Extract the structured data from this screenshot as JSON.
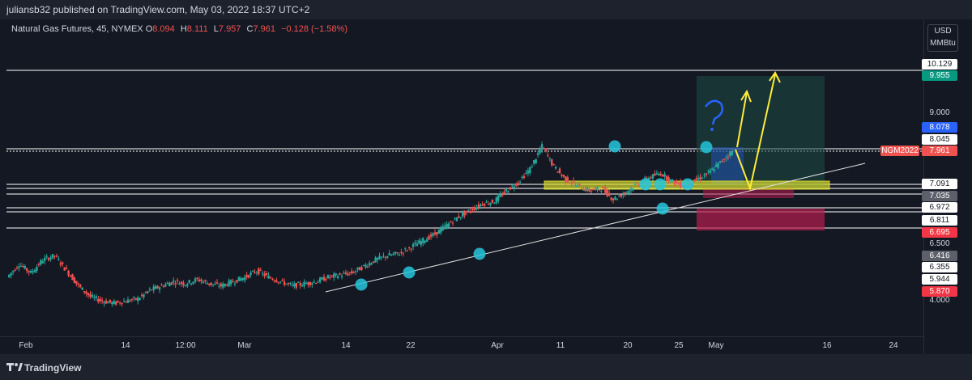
{
  "header": {
    "publisher": "juliansb32 published on TradingView.com, May 03, 2022 18:37 UTC+2"
  },
  "legend": {
    "symbol": "Natural Gas Futures, 45, NYMEX",
    "open_label": "O",
    "open": "8.094",
    "high_label": "H",
    "high": "8.111",
    "low_label": "L",
    "low": "7.957",
    "close_label": "C",
    "close": "7.961",
    "change": "−0.128 (−1.58%)"
  },
  "currency": {
    "line1": "USD",
    "line2": "MMBtu"
  },
  "symbol_tag": "NGM2022",
  "footer": {
    "brand": "TradingView"
  },
  "colors": {
    "up": "#26a69a",
    "down": "#ef5350",
    "green_badge": "#089981",
    "blue_badge": "#2962ff",
    "red_badge": "#ef5350",
    "pink_badge": "#f23645",
    "grey_badge": "#5d606b",
    "zone_yellow": "#d4d92e",
    "annotation_yellow": "#ffeb3b",
    "annotation_blue": "#2962ff",
    "touch_point": "#26c6da"
  },
  "chart_data": {
    "type": "candlestick",
    "y_scale": "log",
    "x_tick_labels": [
      "Feb",
      "14",
      "12:00",
      "Mar",
      "14",
      "22",
      "Apr",
      "11",
      "20",
      "25",
      "May",
      "16",
      "24"
    ],
    "price_ticks": [
      "10.129",
      "9.955",
      "9.000",
      "8.078",
      "8.045",
      "7.961",
      "7.091",
      "7.035",
      "6.972",
      "6.811",
      "6.695",
      "6.500",
      "6.416",
      "6.355",
      "5.944",
      "5.870",
      "4.000"
    ],
    "price_labels": [
      {
        "value": "10.129",
        "style": "plain"
      },
      {
        "value": "9.955",
        "style": "green"
      },
      {
        "value": "9.000",
        "style": "text"
      },
      {
        "value": "8.078",
        "style": "blue"
      },
      {
        "value": "8.045",
        "style": "plain"
      },
      {
        "value": "7.961",
        "style": "red"
      },
      {
        "value": "7.091",
        "style": "plain"
      },
      {
        "value": "7.035",
        "style": "grey"
      },
      {
        "value": "6.972",
        "style": "plain"
      },
      {
        "value": "6.811",
        "style": "plain"
      },
      {
        "value": "6.695",
        "style": "pink"
      },
      {
        "value": "6.500",
        "style": "text"
      },
      {
        "value": "6.416",
        "style": "grey"
      },
      {
        "value": "6.355",
        "style": "plain"
      },
      {
        "value": "5.944",
        "style": "plain"
      },
      {
        "value": "5.870",
        "style": "pink"
      },
      {
        "value": "4.000",
        "style": "text"
      }
    ],
    "price_path": [
      5.05,
      5.35,
      5.15,
      5.45,
      5.55,
      5.2,
      4.85,
      4.6,
      4.5,
      4.45,
      4.5,
      4.55,
      4.75,
      4.85,
      4.95,
      4.9,
      5.0,
      4.9,
      4.85,
      4.95,
      5.05,
      5.2,
      5.05,
      4.95,
      4.85,
      4.9,
      4.95,
      5.05,
      5.1,
      5.15,
      5.3,
      5.45,
      5.55,
      5.6,
      5.75,
      5.9,
      6.05,
      6.25,
      6.45,
      6.6,
      6.75,
      6.8,
      7.05,
      7.25,
      7.55,
      8.07,
      7.6,
      7.3,
      7.15,
      7.05,
      7.1,
      6.85,
      7.0,
      7.2,
      7.35,
      7.45,
      7.25,
      7.15,
      7.3,
      7.45,
      7.7,
      7.96
    ],
    "horizontal_levels": [
      10.129,
      8.045,
      7.961,
      7.091,
      7.035,
      6.972,
      6.811,
      6.695,
      6.5
    ],
    "support_zone": [
      7.03,
      7.1
    ],
    "touch_points": [
      5.0,
      5.15,
      5.55,
      8.07,
      7.1,
      7.1,
      6.85,
      7.1,
      8.0
    ]
  }
}
